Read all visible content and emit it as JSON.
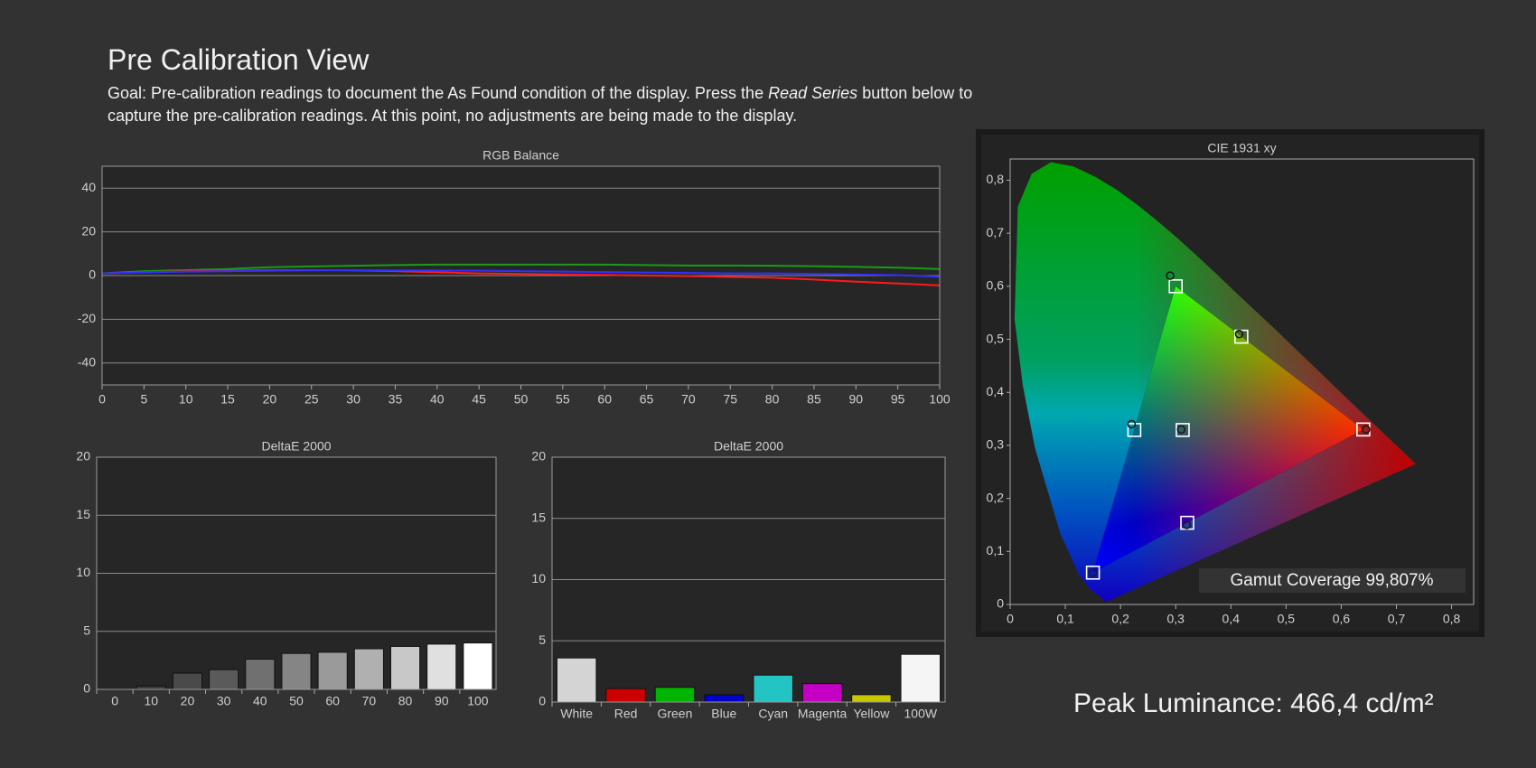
{
  "header": {
    "title": "Pre Calibration View",
    "goal_start": "Goal: Pre-calibration readings to document the As Found condition of the display. Press the",
    "goal_emphasis": "Read Series",
    "goal_end": "button below to capture the pre-calibration readings. At this point, no adjustments are being made to the display."
  },
  "chart_data": [
    {
      "type": "line",
      "title": "RGB Balance",
      "x": [
        0,
        5,
        10,
        15,
        20,
        25,
        30,
        35,
        40,
        45,
        50,
        55,
        60,
        65,
        70,
        75,
        80,
        85,
        90,
        95,
        100
      ],
      "series": [
        {
          "color": "#1a9a1a",
          "values": [
            1,
            2,
            2.5,
            3,
            3.8,
            4.2,
            4.5,
            4.8,
            5,
            5,
            5,
            5,
            5,
            4.8,
            4.6,
            4.6,
            4.5,
            4.3,
            4,
            3.6,
            3
          ]
        },
        {
          "color": "#ff1a1a",
          "values": [
            1,
            1.5,
            2,
            2.3,
            2.5,
            2.5,
            2.4,
            2,
            1.5,
            1,
            0.8,
            0.5,
            0.3,
            0,
            -0.2,
            -0.6,
            -1,
            -1.8,
            -2.8,
            -3.6,
            -4.5
          ]
        },
        {
          "color": "#3030ff",
          "values": [
            1,
            1.5,
            1.8,
            2,
            2.2,
            2.4,
            2.5,
            2.4,
            2.3,
            2.2,
            2,
            1.8,
            1.6,
            1.4,
            1.2,
            1,
            1,
            0.8,
            0.5,
            0.2,
            -0.5
          ]
        }
      ],
      "xlim": [
        0,
        100
      ],
      "xticks": [
        0,
        5,
        10,
        15,
        20,
        25,
        30,
        35,
        40,
        45,
        50,
        55,
        60,
        65,
        70,
        75,
        80,
        85,
        90,
        95,
        100
      ],
      "ylim": [
        -50,
        50
      ],
      "yticks": [
        -40,
        -20,
        0,
        20,
        40
      ],
      "grid": true
    },
    {
      "type": "bar",
      "title": "DeltaE 2000",
      "categories": [
        "0",
        "10",
        "20",
        "30",
        "40",
        "50",
        "60",
        "70",
        "80",
        "90",
        "100"
      ],
      "values": [
        0,
        0.3,
        1.4,
        1.7,
        2.6,
        3.1,
        3.2,
        3.5,
        3.7,
        3.9,
        4.0
      ],
      "colors": [
        "#1e1e1e",
        "#3a3a3a",
        "#4a4a4a",
        "#5a5a5a",
        "#707070",
        "#858585",
        "#9a9a9a",
        "#b0b0b0",
        "#c8c8c8",
        "#e0e0e0",
        "#ffffff"
      ],
      "ylim": [
        0,
        20
      ],
      "yticks": [
        0,
        5,
        10,
        15,
        20
      ],
      "grid": true
    },
    {
      "type": "bar",
      "title": "DeltaE 2000",
      "categories": [
        "White",
        "Red",
        "Green",
        "Blue",
        "Cyan",
        "Magenta",
        "Yellow",
        "100W"
      ],
      "values": [
        3.6,
        1.1,
        1.2,
        0.6,
        2.2,
        1.5,
        0.6,
        3.9
      ],
      "colors": [
        "#d4d4d4",
        "#cc0000",
        "#00b400",
        "#0000c8",
        "#22c4c4",
        "#c400c4",
        "#c8c800",
        "#f5f5f5"
      ],
      "ylim": [
        0,
        20
      ],
      "yticks": [
        0,
        5,
        10,
        15,
        20
      ],
      "grid": true
    },
    {
      "type": "scatter",
      "title": "CIE 1931 xy",
      "series": [
        {
          "marker": "square",
          "color": "#ffffff",
          "x": [
            0.64,
            0.3,
            0.15,
            0.225,
            0.321,
            0.419,
            0.3127
          ],
          "y": [
            0.33,
            0.6,
            0.06,
            0.329,
            0.154,
            0.505,
            0.329
          ]
        },
        {
          "marker": "circle",
          "color": "#1a1a1a",
          "x": [
            0.645,
            0.29,
            0.15,
            0.22,
            0.32,
            0.415,
            0.31
          ],
          "y": [
            0.33,
            0.62,
            0.06,
            0.34,
            0.15,
            0.51,
            0.33
          ]
        }
      ],
      "annotation": "Gamut Coverage 99,807%",
      "xlim": [
        0,
        0.84
      ],
      "ylim": [
        0,
        0.84
      ],
      "xticks": [
        0,
        {
          "value": 0.1,
          "label": "0,1"
        },
        {
          "value": 0.2,
          "label": "0,2"
        },
        {
          "value": 0.3,
          "label": "0,3"
        },
        {
          "value": 0.4,
          "label": "0,4"
        },
        {
          "value": 0.5,
          "label": "0,5"
        },
        {
          "value": 0.6,
          "label": "0,6"
        },
        {
          "value": 0.7,
          "label": "0,7"
        },
        {
          "value": 0.8,
          "label": "0,8"
        }
      ],
      "yticks": [
        0,
        {
          "value": 0.1,
          "label": "0,1"
        },
        {
          "value": 0.2,
          "label": "0,2"
        },
        {
          "value": 0.3,
          "label": "0,3"
        },
        {
          "value": 0.4,
          "label": "0,4"
        },
        {
          "value": 0.5,
          "label": "0,5"
        },
        {
          "value": 0.6,
          "label": "0,6"
        },
        {
          "value": 0.7,
          "label": "0,7"
        },
        {
          "value": 0.8,
          "label": "0,8"
        }
      ],
      "grid": false
    }
  ],
  "peak_luminance": "Peak Luminance: 466,4 cd/m²"
}
